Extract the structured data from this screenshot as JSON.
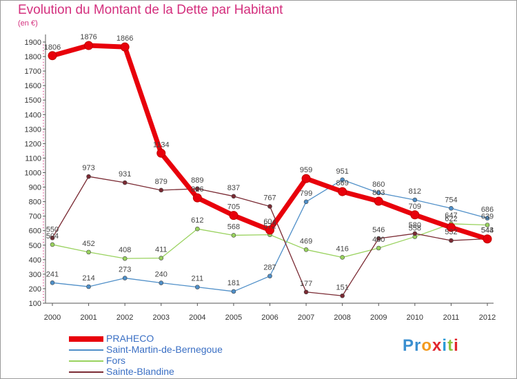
{
  "title": "Evolution du Montant de la Dette par Habitant",
  "subtitle": "(en €)",
  "logo": {
    "text": "Proxiti",
    "letter_colors": [
      "#3a8fd0",
      "#3a8fd0",
      "#f39a1e",
      "#e2262d",
      "#2b9bd6",
      "#8cc43f",
      "#e2262d"
    ]
  },
  "chart_data": {
    "type": "line",
    "title": "Evolution du Montant de la Dette par Habitant",
    "subtitle": "(en €)",
    "x": [
      "2000",
      "2001",
      "2002",
      "2003",
      "2004",
      "2005",
      "2006",
      "2007",
      "2008",
      "2009",
      "2010",
      "2011",
      "2012"
    ],
    "ylim": [
      100,
      1900
    ],
    "yticks": [
      100,
      200,
      300,
      400,
      500,
      600,
      700,
      800,
      900,
      1000,
      1100,
      1200,
      1300,
      1400,
      1500,
      1600,
      1700,
      1800,
      1900
    ],
    "grid": false,
    "legend_position": "bottom-left",
    "series": [
      {
        "name": "PRAHECO",
        "color": "#e8000b",
        "values": [
          1806,
          1876,
          1866,
          1134,
          826,
          705,
          604,
          959,
          869,
          803,
          709,
          622,
          543
        ]
      },
      {
        "name": "Saint-Martin-de-Bernegoue",
        "color": "#4f8fc8",
        "values": [
          241,
          214,
          273,
          240,
          211,
          181,
          287,
          799,
          951,
          860,
          812,
          754,
          686
        ]
      },
      {
        "name": "Fors",
        "color": "#99d25e",
        "values": [
          504,
          452,
          408,
          411,
          612,
          568,
          572,
          469,
          416,
          480,
          558,
          647,
          639
        ]
      },
      {
        "name": "Sainte-Blandine",
        "color": "#7a2a33",
        "values": [
          550,
          973,
          931,
          879,
          889,
          837,
          767,
          177,
          151,
          546,
          580,
          532,
          544
        ]
      }
    ],
    "data_labels": [
      [
        "1806",
        "1876",
        "1866",
        "1134",
        "826",
        "705",
        "604",
        "959",
        "869",
        "803",
        "709",
        "622",
        "543"
      ],
      [
        "241",
        "214",
        "273",
        "240",
        "211",
        "181",
        "287",
        "799",
        "951",
        "860",
        "812",
        "754",
        "686"
      ],
      [
        "504",
        "452",
        "408",
        "411",
        "612",
        "568",
        "572",
        "469",
        "416",
        "480",
        "558",
        "647",
        "639"
      ],
      [
        "550",
        "973",
        "931",
        "879",
        "889",
        "837",
        "767",
        "177",
        "151",
        "546",
        "580",
        "532",
        "544"
      ]
    ]
  }
}
